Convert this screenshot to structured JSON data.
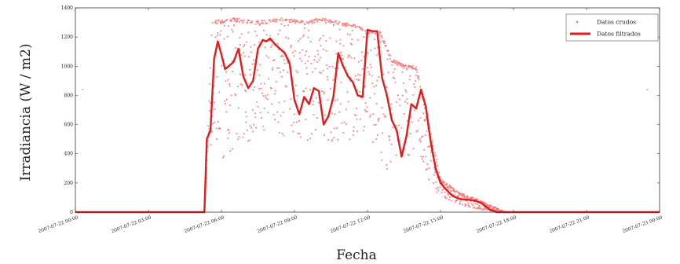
{
  "chart_data": {
    "type": "line",
    "xlabel": "Fecha",
    "ylabel": "Irradiancia (W / m2)",
    "ylim": [
      0,
      1400
    ],
    "yticks": [
      0,
      200,
      400,
      600,
      800,
      1000,
      1200,
      1400
    ],
    "xlim_hours": [
      0,
      24
    ],
    "xticks": [
      {
        "h": 0,
        "label": "2007-07-22 00:00"
      },
      {
        "h": 3,
        "label": "2007-07-22 03:00"
      },
      {
        "h": 6,
        "label": "2007-07-22 06:00"
      },
      {
        "h": 9,
        "label": "2007-07-22 09:00"
      },
      {
        "h": 12,
        "label": "2007-07-22 12:00"
      },
      {
        "h": 15,
        "label": "2007-07-22 15:00"
      },
      {
        "h": 18,
        "label": "2007-07-22 18:00"
      },
      {
        "h": 21,
        "label": "2007-07-22 21:00"
      },
      {
        "h": 24,
        "label": "2007-07-23 00:00"
      }
    ],
    "grid": false,
    "legend_position": "top-right",
    "series": [
      {
        "name": "Datos crudos",
        "style": "points",
        "color": "#f07070",
        "envelope": {
          "hours": [
            5.3,
            5.45,
            5.6,
            6.0,
            6.5,
            7.0,
            7.5,
            8.0,
            8.5,
            9.0,
            9.5,
            10.0,
            10.5,
            11.0,
            11.5,
            11.8,
            12.0,
            12.5,
            13.0,
            13.5,
            14.0,
            14.5,
            14.8,
            15.0,
            15.5,
            16.0,
            16.5,
            16.9,
            17.3,
            17.7
          ],
          "high": [
            0,
            560,
            1310,
            1320,
            1330,
            1320,
            1310,
            1320,
            1330,
            1320,
            1310,
            1330,
            1320,
            1300,
            1290,
            1270,
            1240,
            1250,
            1050,
            1010,
            1000,
            600,
            400,
            230,
            170,
            120,
            90,
            60,
            30,
            0
          ],
          "low": [
            0,
            500,
            400,
            330,
            420,
            450,
            550,
            560,
            500,
            550,
            480,
            530,
            470,
            460,
            510,
            560,
            540,
            380,
            240,
            250,
            350,
            180,
            150,
            100,
            70,
            40,
            20,
            10,
            0,
            0
          ]
        },
        "outliers": [
          {
            "h": 0.3,
            "y": 840
          },
          {
            "h": 23.5,
            "y": 840
          }
        ]
      },
      {
        "name": "Datos filtrados",
        "style": "line",
        "color": "#e21b1b",
        "x_hours": [
          0,
          5.3,
          5.4,
          5.55,
          5.7,
          5.85,
          6.0,
          6.15,
          6.3,
          6.5,
          6.7,
          6.9,
          7.1,
          7.3,
          7.5,
          7.7,
          7.85,
          8.0,
          8.2,
          8.4,
          8.6,
          8.8,
          9.0,
          9.2,
          9.4,
          9.6,
          9.8,
          10.0,
          10.2,
          10.4,
          10.6,
          10.8,
          11.0,
          11.2,
          11.4,
          11.6,
          11.8,
          12.0,
          12.2,
          12.4,
          12.6,
          12.8,
          13.0,
          13.2,
          13.4,
          13.6,
          13.8,
          14.0,
          14.2,
          14.4,
          14.6,
          14.8,
          15.0,
          15.2,
          15.5,
          15.8,
          16.1,
          16.4,
          16.7,
          17.0,
          17.3,
          17.6,
          24
        ],
        "values": [
          0,
          0,
          500,
          560,
          1050,
          1170,
          1080,
          980,
          1000,
          1030,
          1120,
          930,
          850,
          900,
          1120,
          1180,
          1170,
          1190,
          1150,
          1120,
          1090,
          1020,
          770,
          670,
          790,
          740,
          850,
          830,
          600,
          660,
          790,
          1090,
          1000,
          930,
          890,
          800,
          790,
          1250,
          1240,
          1240,
          920,
          800,
          630,
          560,
          380,
          520,
          740,
          710,
          840,
          720,
          480,
          300,
          200,
          160,
          110,
          90,
          85,
          80,
          60,
          20,
          0,
          0,
          0
        ]
      }
    ]
  }
}
